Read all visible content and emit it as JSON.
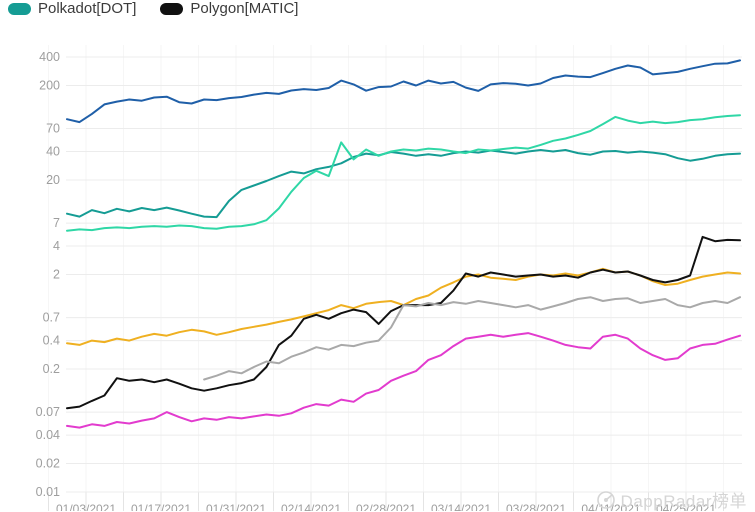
{
  "legend": {
    "items": [
      {
        "label": "Polkadot[DOT]",
        "color": "#159C94"
      },
      {
        "label": "Polygon[MATIC]",
        "color": "#111111"
      }
    ]
  },
  "watermark": {
    "text": "DappRadar榜单",
    "icon": "radar-icon",
    "color": "#d5d5d5"
  },
  "chart_data": {
    "type": "line",
    "scale": "log",
    "title": "",
    "xlabel": "",
    "ylabel": "",
    "ylim": [
      0.01,
      400
    ],
    "grid": true,
    "legend_position": "top-left",
    "y_tick_labels": [
      "400",
      "200",
      "70",
      "40",
      "20",
      "7",
      "4",
      "2",
      "0.7",
      "0.4",
      "0.2",
      "0.07",
      "0.04",
      "0.02",
      "0.01"
    ],
    "y_tick_values": [
      400,
      200,
      70,
      40,
      20,
      7,
      4,
      2,
      0.7,
      0.4,
      0.2,
      0.07,
      0.04,
      0.02,
      0.01
    ],
    "x_labels": [
      "01/03/2021",
      "01/17/2021",
      "01/31/2021",
      "02/14/2021",
      "02/28/2021",
      "03/14/2021",
      "03/28/2021",
      "04/11/2021",
      "04/25/2021"
    ],
    "series": [
      {
        "name": "series-blue",
        "color": "#1F5FA8",
        "values": [
          88,
          82,
          100,
          126,
          135,
          142,
          138,
          149,
          152,
          133,
          129,
          142,
          140,
          147,
          151,
          160,
          167,
          163,
          177,
          183,
          179,
          188,
          225,
          205,
          176,
          192,
          195,
          220,
          200,
          225,
          210,
          218,
          190,
          175,
          205,
          212,
          208,
          200,
          210,
          240,
          255,
          248,
          245,
          270,
          300,
          325,
          310,
          262,
          270,
          278,
          300,
          320,
          340,
          342,
          368
        ]
      },
      {
        "name": "Polkadot[DOT]",
        "color": "#159C94",
        "values": [
          8.8,
          8.2,
          9.6,
          8.9,
          9.9,
          9.3,
          10.1,
          9.6,
          10.2,
          9.5,
          8.8,
          8.2,
          8.1,
          12,
          15.7,
          17.5,
          19.5,
          22,
          24.5,
          23.5,
          26,
          27.5,
          30,
          35,
          38,
          36.5,
          39.5,
          38,
          36,
          37.5,
          36,
          38.5,
          40,
          39,
          41,
          39.5,
          38,
          40,
          41.5,
          40,
          41.5,
          38.5,
          37,
          40,
          40.5,
          39,
          40,
          39,
          37.5,
          34,
          32,
          33.5,
          36,
          37.5,
          38
        ]
      },
      {
        "name": "series-green",
        "color": "#2FD7A6",
        "values": [
          5.8,
          6.0,
          5.9,
          6.2,
          6.3,
          6.2,
          6.4,
          6.5,
          6.4,
          6.6,
          6.5,
          6.2,
          6.1,
          6.4,
          6.5,
          6.8,
          7.5,
          10,
          15,
          21,
          25,
          22,
          50,
          33,
          42,
          36,
          40,
          42,
          41,
          43,
          42,
          40,
          38.5,
          42,
          41,
          42.5,
          44,
          43,
          47,
          52,
          55,
          60,
          66,
          78,
          93,
          85,
          80,
          83,
          80,
          82,
          86,
          88,
          92,
          95,
          97
        ]
      },
      {
        "name": "series-orange",
        "color": "#EFB021",
        "values": [
          0.375,
          0.36,
          0.4,
          0.385,
          0.42,
          0.4,
          0.44,
          0.47,
          0.45,
          0.49,
          0.52,
          0.5,
          0.46,
          0.49,
          0.53,
          0.56,
          0.59,
          0.63,
          0.67,
          0.72,
          0.78,
          0.84,
          0.95,
          0.88,
          0.98,
          1.02,
          1.05,
          0.95,
          1.1,
          1.2,
          1.45,
          1.65,
          1.9,
          2.0,
          1.85,
          1.8,
          1.75,
          1.9,
          2.0,
          1.95,
          2.05,
          1.95,
          2.1,
          2.3,
          2.1,
          2.15,
          1.95,
          1.7,
          1.55,
          1.6,
          1.75,
          1.9,
          2.0,
          2.1,
          2.05
        ]
      },
      {
        "name": "Polygon[MATIC]",
        "color": "#111111",
        "values": [
          0.077,
          0.08,
          0.092,
          0.105,
          0.16,
          0.15,
          0.155,
          0.145,
          0.155,
          0.14,
          0.125,
          0.118,
          0.125,
          0.135,
          0.142,
          0.155,
          0.21,
          0.36,
          0.45,
          0.68,
          0.75,
          0.68,
          0.78,
          0.85,
          0.8,
          0.6,
          0.82,
          0.95,
          0.95,
          0.95,
          1.0,
          1.35,
          2.05,
          1.9,
          2.1,
          2.0,
          1.9,
          1.95,
          2.0,
          1.9,
          1.95,
          1.85,
          2.1,
          2.25,
          2.1,
          2.15,
          1.95,
          1.75,
          1.65,
          1.75,
          1.95,
          5.0,
          4.5,
          4.65,
          4.6
        ]
      },
      {
        "name": "series-gray",
        "color": "#A9A9A9",
        "values": [
          null,
          null,
          null,
          null,
          null,
          null,
          null,
          null,
          null,
          null,
          null,
          0.155,
          0.17,
          0.19,
          0.18,
          0.21,
          0.24,
          0.23,
          0.27,
          0.3,
          0.34,
          0.32,
          0.36,
          0.35,
          0.38,
          0.4,
          0.55,
          0.95,
          0.92,
          1.0,
          0.95,
          1.02,
          0.98,
          1.05,
          1.0,
          0.95,
          0.9,
          0.95,
          0.85,
          0.92,
          1.0,
          1.1,
          1.15,
          1.05,
          1.1,
          1.12,
          1.0,
          1.05,
          1.1,
          0.95,
          0.9,
          1.0,
          1.05,
          1.0,
          1.15
        ]
      },
      {
        "name": "series-magenta",
        "color": "#E23BCE",
        "values": [
          0.05,
          0.048,
          0.052,
          0.05,
          0.055,
          0.053,
          0.057,
          0.06,
          0.07,
          0.062,
          0.056,
          0.06,
          0.058,
          0.062,
          0.06,
          0.063,
          0.066,
          0.064,
          0.068,
          0.078,
          0.085,
          0.082,
          0.095,
          0.09,
          0.11,
          0.12,
          0.15,
          0.17,
          0.19,
          0.25,
          0.28,
          0.35,
          0.42,
          0.44,
          0.46,
          0.44,
          0.46,
          0.48,
          0.44,
          0.4,
          0.36,
          0.34,
          0.33,
          0.44,
          0.46,
          0.42,
          0.33,
          0.28,
          0.25,
          0.26,
          0.33,
          0.36,
          0.37,
          0.41,
          0.45
        ]
      }
    ]
  }
}
